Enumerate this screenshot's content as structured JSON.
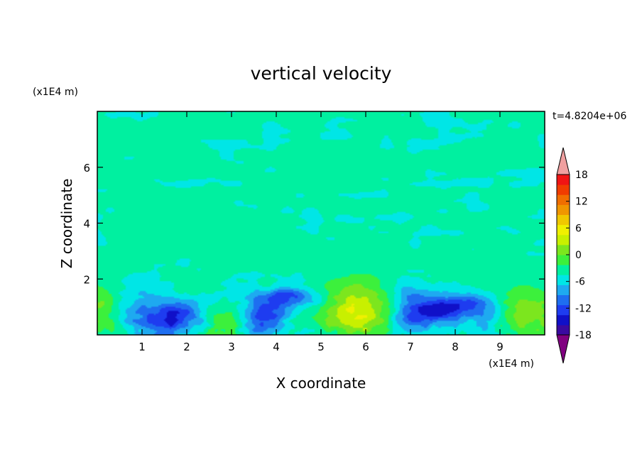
{
  "chart_data": {
    "type": "heatmap",
    "title": "vertical velocity",
    "xlabel": "X coordinate",
    "ylabel": "Z coordinate",
    "x_units": "(x1E4 m)",
    "y_units": "(x1E4 m)",
    "time_label": "t=4.8204e+06",
    "xlim": [
      0,
      10
    ],
    "ylim": [
      0,
      8
    ],
    "x_ticks": [
      "1",
      "2",
      "3",
      "4",
      "5",
      "6",
      "7",
      "8",
      "9"
    ],
    "y_ticks": [
      "2",
      "4",
      "6"
    ],
    "colorbar": {
      "tick_labels": [
        "18",
        "12",
        "6",
        "0",
        "-6",
        "-12",
        "-18"
      ],
      "tick_values": [
        18,
        12,
        6,
        0,
        -6,
        -12,
        -18
      ],
      "range": [
        -21,
        21
      ],
      "level_step": 3,
      "colors": [
        "#800080",
        "#3a0aa0",
        "#1010c8",
        "#1e3cf0",
        "#1e6ef0",
        "#1eaaf0",
        "#00e6e6",
        "#00f0a0",
        "#3cf03c",
        "#7ce61e",
        "#c8f000",
        "#f0f000",
        "#f0c800",
        "#f09600",
        "#f06e00",
        "#f03c00",
        "#f01414",
        "#f0a0a0"
      ]
    },
    "features": [
      {
        "x": 5.85,
        "z": 0.85,
        "w": -0.2,
        "peak": 12,
        "sx": 0.55,
        "sz": 0.75
      },
      {
        "x": 0.0,
        "z": 0.9,
        "w": 0,
        "peak": 6,
        "sx": 0.35,
        "sz": 0.8
      },
      {
        "x": 9.6,
        "z": 0.8,
        "w": 0,
        "peak": 7,
        "sx": 0.55,
        "sz": 0.7
      },
      {
        "x": 2.9,
        "z": 0.4,
        "w": 0,
        "peak": 5,
        "sx": 0.3,
        "sz": 0.45
      },
      {
        "x": 3.8,
        "z": 1.65,
        "w": 0,
        "peak": 4,
        "sx": 0.15,
        "sz": 0.25
      },
      {
        "x": 2.0,
        "z": 1.6,
        "w": 0,
        "peak": 3,
        "sx": 0.25,
        "sz": 0.2
      },
      {
        "x": 1.7,
        "z": 0.6,
        "w": 0.3,
        "peak": -13,
        "sx": 0.42,
        "sz": 0.45
      },
      {
        "x": 3.75,
        "z": 0.65,
        "w": 0.2,
        "peak": -12,
        "sx": 0.35,
        "sz": 0.5
      },
      {
        "x": 4.3,
        "z": 1.4,
        "w": -0.5,
        "peak": -9,
        "sx": 0.55,
        "sz": 0.25
      },
      {
        "x": 7.1,
        "z": 0.7,
        "w": 0.4,
        "peak": -10,
        "sx": 0.45,
        "sz": 0.45
      },
      {
        "x": 8.0,
        "z": 0.95,
        "w": 0.5,
        "peak": -12,
        "sx": 0.55,
        "sz": 0.35
      },
      {
        "x": 6.95,
        "z": 1.5,
        "w": 0,
        "peak": -6,
        "sx": 0.25,
        "sz": 0.3
      },
      {
        "x": 1.0,
        "z": 0.9,
        "w": 0,
        "peak": -5,
        "sx": 0.45,
        "sz": 0.6
      },
      {
        "x": 8.7,
        "z": 0.6,
        "w": 0,
        "peak": -5,
        "sx": 0.25,
        "sz": 0.5
      }
    ]
  }
}
